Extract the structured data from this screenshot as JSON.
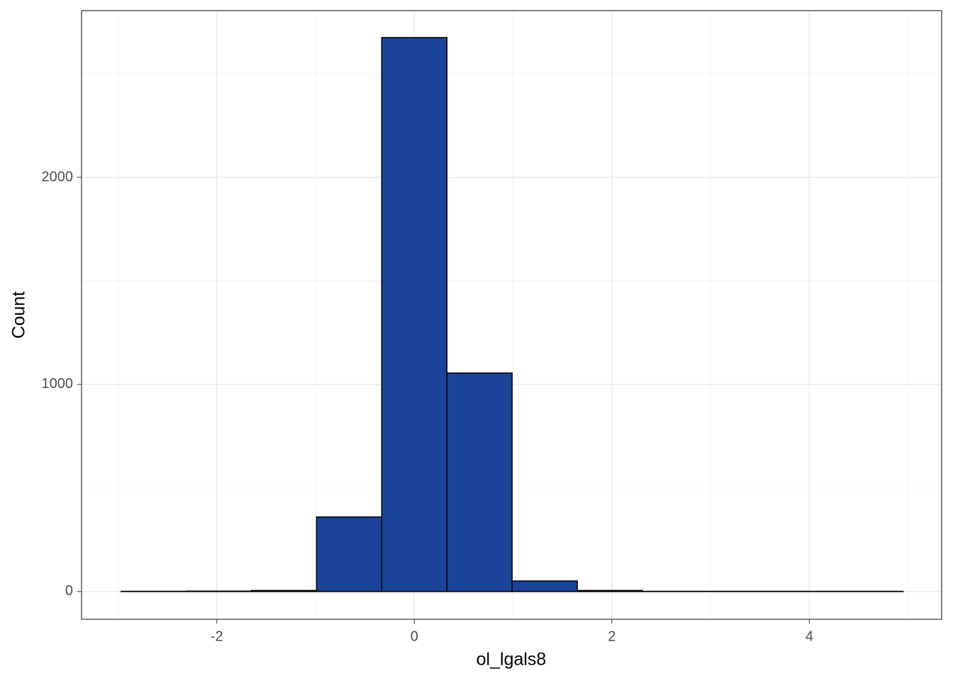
{
  "chart_data": {
    "type": "histogram",
    "x_label": "ol_lgals8",
    "y_label": "Count",
    "bins": [
      -2.97,
      -2.31,
      -1.65,
      -0.99,
      -0.33,
      0.33,
      0.99,
      1.65,
      2.31,
      2.97,
      3.63,
      4.29,
      4.95
    ],
    "values": [
      1,
      2,
      5,
      360,
      2675,
      1055,
      51,
      5,
      1,
      1,
      1,
      1
    ],
    "color": "#1a4499",
    "edge_color": "#000000",
    "xlim": [
      -3.37,
      5.34
    ],
    "ylim": [
      -134,
      2805
    ],
    "xticks": [
      -2,
      0,
      2,
      4
    ],
    "yticks": [
      0,
      1000,
      2000
    ],
    "x_minor_grid": [
      -3,
      -1,
      1,
      3,
      5
    ],
    "y_minor_grid": [
      500,
      1500,
      2500
    ],
    "grid": true
  }
}
